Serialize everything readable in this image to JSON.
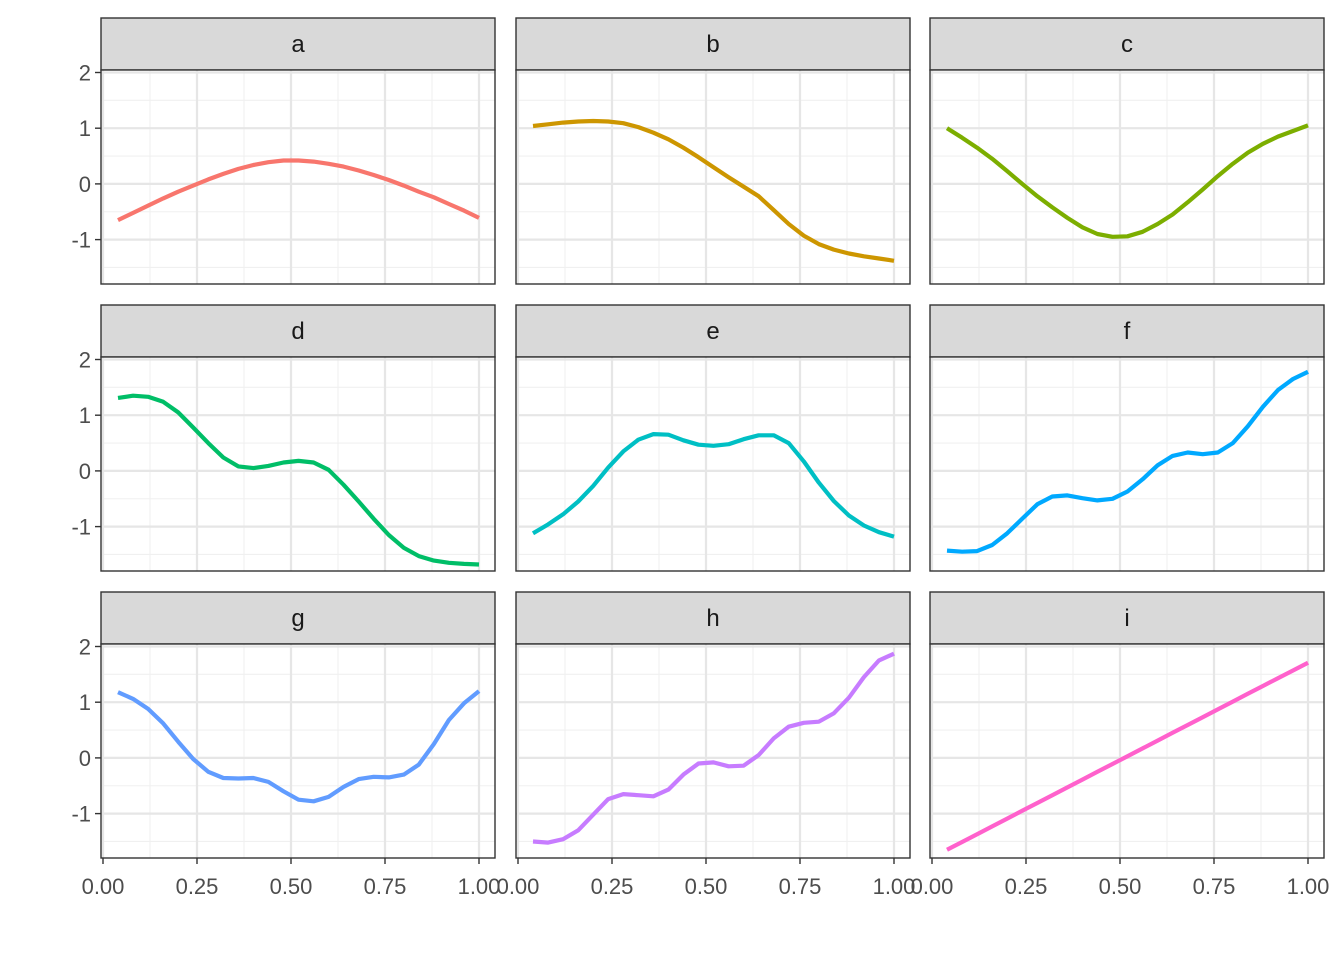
{
  "chart_data": {
    "type": "line",
    "layout": "facet-grid 3x3",
    "title": "",
    "xlabel": "",
    "ylabel": "",
    "xlim": [
      0.0,
      1.0
    ],
    "ylim": [
      -1.75,
      2.0
    ],
    "x_ticks": [
      "0.00",
      "0.25",
      "0.50",
      "0.75",
      "1.00"
    ],
    "y_ticks": [
      "-1",
      "0",
      "1",
      "2"
    ],
    "grid": true,
    "legend": "none",
    "x": [
      0.04,
      0.08,
      0.12,
      0.16,
      0.2,
      0.24,
      0.28,
      0.32,
      0.36,
      0.4,
      0.44,
      0.48,
      0.52,
      0.56,
      0.6,
      0.64,
      0.68,
      0.72,
      0.76,
      0.8,
      0.84,
      0.88,
      0.92,
      0.96,
      1.0
    ],
    "panels": [
      {
        "label": "a",
        "color": "#F8766D",
        "values": [
          -0.65,
          -0.52,
          -0.39,
          -0.26,
          -0.14,
          -0.03,
          0.08,
          0.18,
          0.27,
          0.34,
          0.39,
          0.42,
          0.42,
          0.4,
          0.36,
          0.31,
          0.24,
          0.16,
          0.07,
          -0.03,
          -0.14,
          -0.24,
          -0.36,
          -0.48,
          -0.61
        ]
      },
      {
        "label": "b",
        "color": "#CD9600",
        "values": [
          1.04,
          1.07,
          1.1,
          1.12,
          1.13,
          1.12,
          1.09,
          1.02,
          0.92,
          0.8,
          0.65,
          0.48,
          0.3,
          0.12,
          -0.05,
          -0.22,
          -0.47,
          -0.72,
          -0.93,
          -1.08,
          -1.18,
          -1.25,
          -1.3,
          -1.34,
          -1.38
        ]
      },
      {
        "label": "c",
        "color": "#7CAE00",
        "values": [
          1.0,
          0.83,
          0.65,
          0.45,
          0.23,
          0.0,
          -0.22,
          -0.42,
          -0.61,
          -0.78,
          -0.9,
          -0.95,
          -0.94,
          -0.86,
          -0.72,
          -0.55,
          -0.33,
          -0.1,
          0.14,
          0.36,
          0.56,
          0.72,
          0.85,
          0.95,
          1.05
        ]
      },
      {
        "label": "d",
        "color": "#00BE67",
        "values": [
          1.31,
          1.35,
          1.33,
          1.24,
          1.05,
          0.78,
          0.5,
          0.24,
          0.08,
          0.05,
          0.09,
          0.15,
          0.18,
          0.15,
          0.02,
          -0.25,
          -0.55,
          -0.86,
          -1.15,
          -1.38,
          -1.53,
          -1.61,
          -1.65,
          -1.67,
          -1.68
        ]
      },
      {
        "label": "e",
        "color": "#00BFC4",
        "values": [
          -1.12,
          -0.96,
          -0.78,
          -0.55,
          -0.27,
          0.06,
          0.35,
          0.56,
          0.66,
          0.65,
          0.55,
          0.47,
          0.45,
          0.48,
          0.57,
          0.64,
          0.64,
          0.5,
          0.17,
          -0.21,
          -0.54,
          -0.8,
          -0.98,
          -1.1,
          -1.18
        ]
      },
      {
        "label": "f",
        "color": "#00A9FF",
        "values": [
          -1.43,
          -1.45,
          -1.44,
          -1.33,
          -1.12,
          -0.86,
          -0.6,
          -0.46,
          -0.44,
          -0.49,
          -0.53,
          -0.5,
          -0.37,
          -0.15,
          0.1,
          0.27,
          0.33,
          0.3,
          0.33,
          0.5,
          0.8,
          1.15,
          1.45,
          1.65,
          1.78
        ]
      },
      {
        "label": "g",
        "color": "#619CFF",
        "values": [
          1.18,
          1.06,
          0.88,
          0.62,
          0.29,
          -0.02,
          -0.25,
          -0.36,
          -0.37,
          -0.36,
          -0.43,
          -0.6,
          -0.75,
          -0.78,
          -0.7,
          -0.52,
          -0.38,
          -0.34,
          -0.35,
          -0.3,
          -0.12,
          0.25,
          0.68,
          0.98,
          1.2
        ]
      },
      {
        "label": "h",
        "color": "#C77CFF",
        "values": [
          -1.5,
          -1.52,
          -1.46,
          -1.3,
          -1.02,
          -0.74,
          -0.65,
          -0.67,
          -0.69,
          -0.57,
          -0.3,
          -0.1,
          -0.08,
          -0.15,
          -0.14,
          0.05,
          0.35,
          0.56,
          0.63,
          0.65,
          0.8,
          1.08,
          1.45,
          1.75,
          1.87
        ]
      },
      {
        "label": "i",
        "color": "#FF61CC",
        "values": [
          -1.65,
          -1.51,
          -1.37,
          -1.23,
          -1.09,
          -0.95,
          -0.81,
          -0.67,
          -0.53,
          -0.39,
          -0.25,
          -0.11,
          0.03,
          0.17,
          0.31,
          0.45,
          0.59,
          0.73,
          0.87,
          1.01,
          1.15,
          1.29,
          1.43,
          1.57,
          1.71
        ]
      }
    ]
  }
}
